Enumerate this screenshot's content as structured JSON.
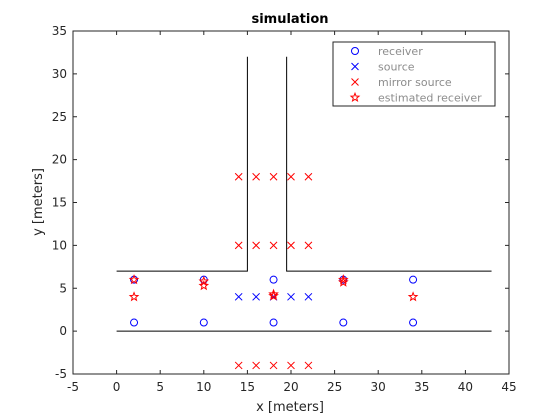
{
  "chart_data": {
    "type": "scatter",
    "title": "simulation",
    "xlabel": "x [meters]",
    "ylabel": "y [meters]",
    "xlim": [
      -5,
      45
    ],
    "ylim": [
      -5,
      35
    ],
    "xticks": [
      -5,
      0,
      5,
      10,
      15,
      20,
      25,
      30,
      35,
      40,
      45
    ],
    "yticks": [
      -5,
      0,
      5,
      10,
      15,
      20,
      25,
      30,
      35
    ],
    "grid": false,
    "legend_position": "top-right",
    "walls": [
      {
        "x": [
          0,
          43
        ],
        "y": [
          0,
          0
        ]
      },
      {
        "x": [
          0,
          15,
          15
        ],
        "y": [
          7,
          7,
          32
        ]
      },
      {
        "x": [
          19.5,
          19.5,
          43
        ],
        "y": [
          32,
          7,
          7
        ]
      }
    ],
    "series": [
      {
        "name": "receiver",
        "marker": "circle",
        "color": "#0000ff",
        "x": [
          2,
          2,
          10,
          10,
          18,
          18,
          26,
          26,
          34,
          34
        ],
        "y": [
          6,
          1,
          6,
          1,
          6,
          1,
          6,
          1,
          6,
          1
        ]
      },
      {
        "name": "source",
        "marker": "x",
        "color": "#0000ff",
        "x": [
          14,
          16,
          18,
          20,
          22
        ],
        "y": [
          4,
          4,
          4,
          4,
          4
        ]
      },
      {
        "name": "mirror source",
        "marker": "x",
        "color": "#ff0000",
        "x": [
          14,
          16,
          18,
          20,
          22,
          14,
          16,
          18,
          20,
          22,
          14,
          16,
          18,
          20,
          22
        ],
        "y": [
          18,
          18,
          18,
          18,
          18,
          10,
          10,
          10,
          10,
          10,
          -4,
          -4,
          -4,
          -4,
          -4
        ]
      },
      {
        "name": "estimated receiver",
        "marker": "star",
        "color": "#ff0000",
        "x": [
          2,
          2,
          10,
          10,
          18,
          18,
          26,
          26,
          34
        ],
        "y": [
          6,
          4,
          5.8,
          5.3,
          4.3,
          4.1,
          6,
          5.7,
          4
        ]
      }
    ]
  }
}
